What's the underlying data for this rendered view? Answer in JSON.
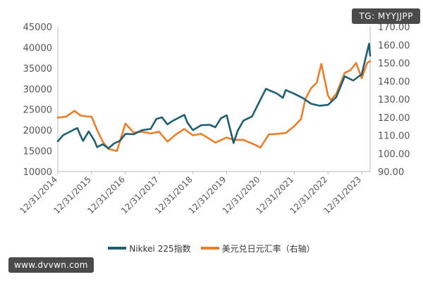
{
  "watermarks": {
    "top_right": "TG: MYYJJPP",
    "bottom_left": "www.dvvwn.com"
  },
  "colors": {
    "nikkei": "#1f5f73",
    "usdjpy": "#ee7d2a",
    "axis_text": "#555555",
    "axis_line": "#bbbbbb"
  },
  "chart_data": {
    "type": "line",
    "title": "",
    "xlabel": "",
    "ylabel": "",
    "grid": false,
    "legend_position": "bottom",
    "x_range": [
      "2014-12-31",
      "2024-03-31"
    ],
    "ylim_left": [
      10000,
      45000
    ],
    "ylim_right": [
      90,
      170
    ],
    "left_ticks": [
      "10000",
      "15000",
      "20000",
      "25000",
      "30000",
      "35000",
      "40000",
      "45000"
    ],
    "right_ticks": [
      "90.00",
      "100.00",
      "110.00",
      "120.00",
      "130.00",
      "140.00",
      "150.00",
      "160.00",
      "170.00"
    ],
    "x_ticks": [
      "12/31/2014",
      "12/31/2015",
      "12/31/2016",
      "12/31/2017",
      "12/31/2018",
      "12/31/2019",
      "12/31/2020",
      "12/31/2021",
      "12/31/2022",
      "12/31/2023"
    ],
    "series": [
      {
        "name": "Nikkei 225指数",
        "axis": "left",
        "x": [
          "2014-12-31",
          "2015-02-28",
          "2015-04-30",
          "2015-06-30",
          "2015-07-31",
          "2015-08-31",
          "2015-09-30",
          "2015-11-30",
          "2016-01-31",
          "2016-02-29",
          "2016-04-30",
          "2016-06-30",
          "2016-08-31",
          "2016-10-31",
          "2016-12-31",
          "2017-03-31",
          "2017-06-30",
          "2017-09-30",
          "2017-11-30",
          "2018-01-31",
          "2018-03-31",
          "2018-05-31",
          "2018-09-30",
          "2018-10-31",
          "2018-12-31",
          "2019-03-31",
          "2019-06-30",
          "2019-08-31",
          "2019-10-31",
          "2019-12-31",
          "2020-03-15",
          "2020-04-30",
          "2020-06-30",
          "2020-09-30",
          "2020-12-31",
          "2021-02-28",
          "2021-06-30",
          "2021-08-31",
          "2021-09-30",
          "2021-12-31",
          "2022-03-31",
          "2022-06-30",
          "2022-09-30",
          "2022-12-31",
          "2023-03-31",
          "2023-06-30",
          "2023-09-30",
          "2023-12-31",
          "2024-02-28",
          "2024-03-20",
          "2024-03-31"
        ],
        "values": [
          17300,
          18800,
          19500,
          20200,
          20500,
          18800,
          17400,
          19700,
          17500,
          15900,
          16600,
          15600,
          16800,
          17400,
          19100,
          19000,
          20000,
          20300,
          22700,
          23100,
          21400,
          22300,
          23700,
          21900,
          20000,
          21200,
          21300,
          20700,
          22900,
          23600,
          16900,
          19900,
          22300,
          23300,
          27400,
          30000,
          28800,
          27800,
          29700,
          28800,
          27800,
          26400,
          25900,
          26100,
          28000,
          33000,
          32000,
          33500,
          39000,
          40900,
          38000
        ]
      },
      {
        "name": "美元兑日元汇率（右轴）",
        "axis": "right",
        "x": [
          "2014-12-31",
          "2015-03-31",
          "2015-06-30",
          "2015-08-31",
          "2015-10-31",
          "2015-12-31",
          "2016-02-29",
          "2016-04-30",
          "2016-06-30",
          "2016-09-30",
          "2016-12-31",
          "2017-03-31",
          "2017-06-30",
          "2017-09-30",
          "2017-12-31",
          "2018-03-31",
          "2018-06-30",
          "2018-09-30",
          "2018-12-31",
          "2019-03-31",
          "2019-06-30",
          "2019-08-31",
          "2019-12-31",
          "2020-03-15",
          "2020-06-30",
          "2020-09-30",
          "2020-12-31",
          "2021-03-31",
          "2021-06-30",
          "2021-09-30",
          "2021-12-31",
          "2022-03-15",
          "2022-04-30",
          "2022-06-30",
          "2022-08-31",
          "2022-10-20",
          "2022-12-31",
          "2023-01-31",
          "2023-03-31",
          "2023-06-30",
          "2023-08-31",
          "2023-10-31",
          "2023-12-31",
          "2024-02-28",
          "2024-03-31"
        ],
        "values": [
          119.8,
          120.3,
          123.5,
          121.0,
          120.5,
          120.3,
          113.0,
          106.5,
          102.5,
          101.3,
          116.5,
          111.5,
          112.0,
          111.0,
          112.0,
          106.5,
          110.5,
          113.5,
          110.0,
          110.8,
          108.0,
          106.0,
          108.8,
          107.5,
          107.5,
          105.5,
          103.3,
          110.5,
          110.8,
          111.3,
          115.0,
          119.0,
          130.0,
          136.0,
          139.0,
          149.5,
          132.0,
          129.5,
          133.0,
          144.5,
          146.0,
          150.0,
          141.5,
          150.0,
          151.0
        ]
      }
    ]
  }
}
